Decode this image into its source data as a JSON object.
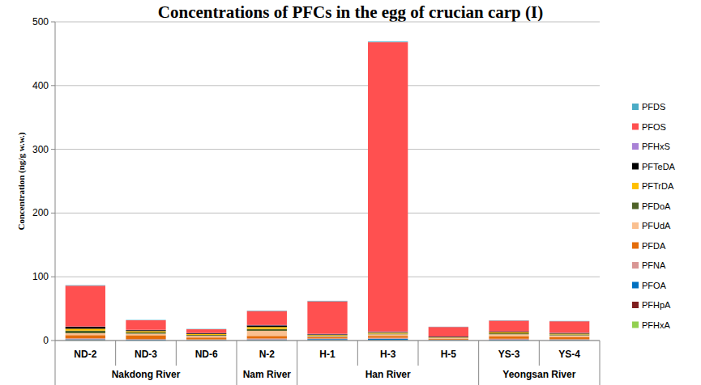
{
  "chart_data": {
    "type": "bar",
    "stacked": true,
    "title": "Concentrations of PFCs in the egg of crucian carp (I)",
    "y_label": "Concentration  (ng/g w.w.)",
    "categories": [
      "ND-2",
      "ND-3",
      "ND-6",
      "N-2",
      "H-1",
      "H-3",
      "H-5",
      "YS-3",
      "YS-4"
    ],
    "groups": [
      {
        "name": "Nakdong River",
        "categories": [
          "ND-2",
          "ND-3",
          "ND-6"
        ]
      },
      {
        "name": "Nam River",
        "categories": [
          "N-2"
        ]
      },
      {
        "name": "Han River",
        "categories": [
          "H-1",
          "H-3",
          "H-5"
        ]
      },
      {
        "name": "Yeongsan River",
        "categories": [
          "YS-3",
          "YS-4"
        ]
      }
    ],
    "ylim": [
      0,
      500
    ],
    "yticks": [
      0,
      100,
      200,
      300,
      400,
      500
    ],
    "grid": true,
    "legend": "right",
    "series": [
      {
        "name": "PFHxA",
        "color": "#92d050",
        "values": [
          0.5,
          0.3,
          0.3,
          0.4,
          0.5,
          0.5,
          0.3,
          0.3,
          0.3
        ]
      },
      {
        "name": "PFHpA",
        "color": "#7f1f1f",
        "values": [
          0.3,
          0.2,
          0.2,
          0.3,
          0.3,
          0.3,
          0.2,
          0.2,
          0.2
        ]
      },
      {
        "name": "PFOA",
        "color": "#0070c0",
        "values": [
          1.2,
          0.8,
          0.5,
          1,
          1.5,
          2,
          0.5,
          0.8,
          0.6
        ]
      },
      {
        "name": "PFNA",
        "color": "#d99694",
        "values": [
          1.5,
          1,
          0.8,
          1.5,
          1,
          1.5,
          0.5,
          1.5,
          1
        ]
      },
      {
        "name": "PFDA",
        "color": "#e46c0a",
        "values": [
          5,
          6,
          3,
          4,
          2,
          3,
          1.5,
          4,
          3.5
        ]
      },
      {
        "name": "PFUdA",
        "color": "#fac090",
        "values": [
          3,
          2.5,
          2.5,
          8,
          1.5,
          2.5,
          1,
          3,
          2.5
        ]
      },
      {
        "name": "PFDoA",
        "color": "#4f6228",
        "values": [
          4,
          2,
          1.5,
          3,
          1,
          1,
          0.5,
          1.5,
          1.5
        ]
      },
      {
        "name": "PFTrDA",
        "color": "#ffc000",
        "values": [
          3,
          2,
          1.5,
          3,
          1,
          1.5,
          0.5,
          1.5,
          1.2
        ]
      },
      {
        "name": "PFTeDA",
        "color": "#000000",
        "values": [
          3,
          1.5,
          1,
          2.5,
          1,
          1,
          1,
          1,
          1
        ]
      },
      {
        "name": "PFHxS",
        "color": "#a982d6",
        "values": [
          0.5,
          0.5,
          0.4,
          0.6,
          0.7,
          0.8,
          0.3,
          0.4,
          0.4
        ]
      },
      {
        "name": "PFOS",
        "color": "#ff5050",
        "values": [
          64,
          15,
          6,
          22,
          51,
          454,
          15,
          17,
          18
        ]
      },
      {
        "name": "PFDS",
        "color": "#4bacc6",
        "values": [
          0.8,
          0.5,
          0.5,
          0.7,
          0.8,
          1,
          0.4,
          0.5,
          0.5
        ]
      }
    ]
  }
}
